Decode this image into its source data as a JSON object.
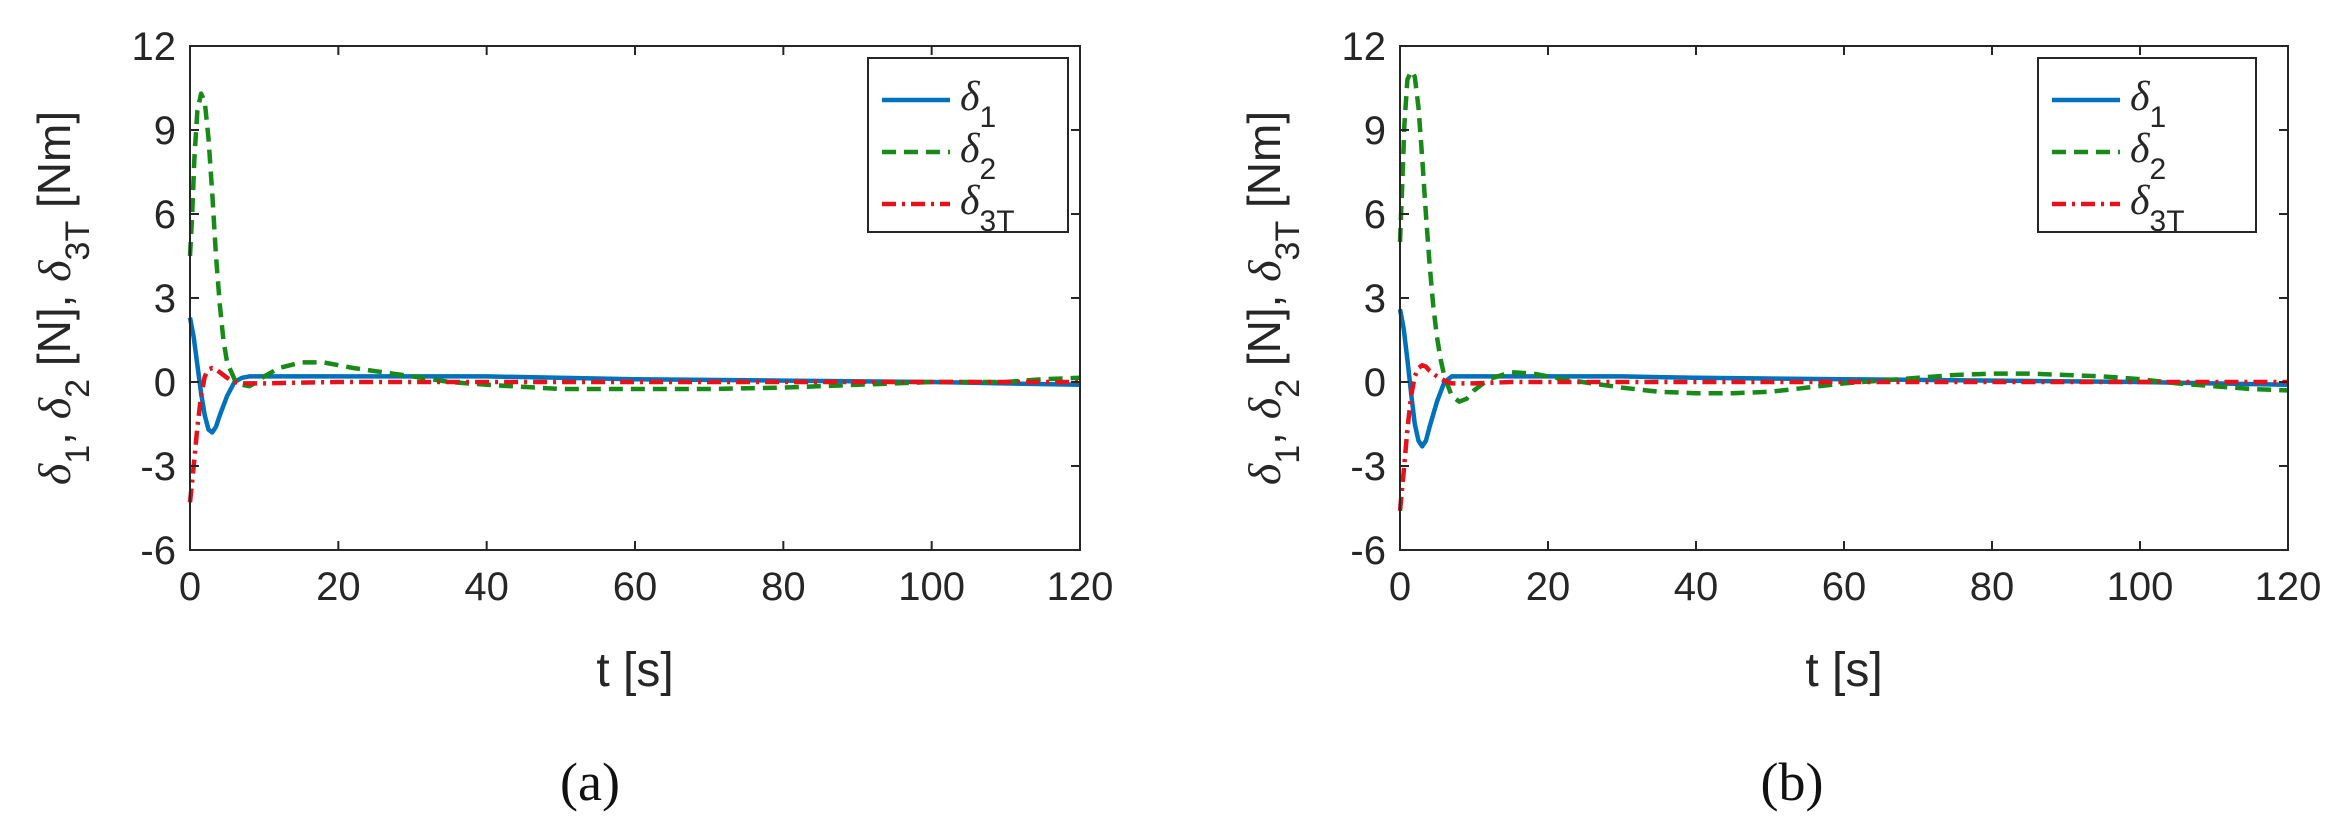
{
  "chart_data": [
    {
      "type": "line",
      "caption": "(a)",
      "xlabel": "t [s]",
      "ylabel": {
        "d1": "δ",
        "s1": "1",
        "d2": "δ",
        "s2": "2",
        "d3": "δ",
        "s3": "3T",
        "u1": " [N], ",
        "u2": " [N], ",
        "u3": " [Nm]",
        "c1": ", "
      },
      "xlim": [
        0,
        120
      ],
      "ylim": [
        -6,
        12
      ],
      "xticks": [
        0,
        20,
        40,
        60,
        80,
        100,
        120
      ],
      "yticks": [
        -6,
        -3,
        0,
        3,
        6,
        9,
        12
      ],
      "xtick_labels": [
        "0",
        "20",
        "40",
        "60",
        "80",
        "100",
        "120"
      ],
      "ytick_labels": [
        "-6",
        "-3",
        "0",
        "3",
        "6",
        "9",
        "12"
      ],
      "legend": {
        "position": "top-right",
        "entries": [
          {
            "symbol": "δ",
            "sub": "1"
          },
          {
            "symbol": "δ",
            "sub": "2"
          },
          {
            "symbol": "δ",
            "sub": "3T"
          }
        ]
      },
      "series": [
        {
          "name": "δ1",
          "color": "#0072BD",
          "style": "solid",
          "x": [
            0,
            0.5,
            1,
            1.5,
            2,
            2.5,
            3,
            3.5,
            4,
            5,
            6,
            7,
            8,
            10,
            12,
            15,
            20,
            30,
            40,
            60,
            80,
            100,
            120
          ],
          "y": [
            2.3,
            1.6,
            0.6,
            -0.4,
            -1.2,
            -1.7,
            -1.8,
            -1.6,
            -1.2,
            -0.5,
            0.0,
            0.15,
            0.2,
            0.2,
            0.2,
            0.2,
            0.2,
            0.2,
            0.2,
            0.1,
            0.05,
            0.0,
            -0.1
          ]
        },
        {
          "name": "δ2",
          "color": "#178A17",
          "style": "dashed",
          "x": [
            0,
            0.3,
            0.6,
            1,
            1.5,
            2,
            2.5,
            3,
            3.5,
            4,
            4.5,
            5,
            6,
            7,
            8,
            9,
            10,
            12,
            15,
            18,
            22,
            26,
            30,
            35,
            40,
            50,
            60,
            70,
            80,
            90,
            100,
            110,
            115,
            120
          ],
          "y": [
            4.5,
            6.0,
            8.0,
            9.7,
            10.3,
            10.0,
            8.7,
            6.7,
            4.5,
            2.8,
            1.5,
            0.7,
            0.1,
            -0.1,
            -0.15,
            0.0,
            0.2,
            0.5,
            0.7,
            0.7,
            0.5,
            0.35,
            0.2,
            0.0,
            -0.1,
            -0.25,
            -0.25,
            -0.25,
            -0.2,
            -0.1,
            0.0,
            0.0,
            0.1,
            0.15
          ]
        },
        {
          "name": "δ3T",
          "color": "#E8101A",
          "style": "dashdot",
          "x": [
            0,
            0.5,
            1,
            1.5,
            2,
            2.5,
            3,
            3.5,
            4,
            5,
            6,
            7,
            8,
            10,
            15,
            20,
            40,
            60,
            80,
            100,
            120
          ],
          "y": [
            -4.3,
            -3.0,
            -1.6,
            -0.5,
            0.2,
            0.45,
            0.5,
            0.45,
            0.35,
            0.15,
            0.0,
            -0.05,
            -0.05,
            -0.05,
            -0.02,
            0.0,
            0.0,
            0.0,
            0.0,
            0.0,
            0.0
          ]
        }
      ]
    },
    {
      "type": "line",
      "caption": "(b)",
      "xlabel": "t [s]",
      "ylabel": {
        "d1": "δ",
        "s1": "1",
        "d2": "δ",
        "s2": "2",
        "d3": "δ",
        "s3": "3T",
        "u1": " [N], ",
        "u2": " [N], ",
        "u3": " [Nm]",
        "c1": ", "
      },
      "xlim": [
        0,
        120
      ],
      "ylim": [
        -6,
        12
      ],
      "xticks": [
        0,
        20,
        40,
        60,
        80,
        100,
        120
      ],
      "yticks": [
        -6,
        -3,
        0,
        3,
        6,
        9,
        12
      ],
      "xtick_labels": [
        "0",
        "20",
        "40",
        "60",
        "80",
        "100",
        "120"
      ],
      "ytick_labels": [
        "-6",
        "-3",
        "0",
        "3",
        "6",
        "9",
        "12"
      ],
      "legend": {
        "position": "top-right",
        "entries": [
          {
            "symbol": "δ",
            "sub": "1"
          },
          {
            "symbol": "δ",
            "sub": "2"
          },
          {
            "symbol": "δ",
            "sub": "3T"
          }
        ]
      },
      "series": [
        {
          "name": "δ1",
          "color": "#0072BD",
          "style": "solid",
          "x": [
            0,
            0.5,
            1,
            1.5,
            2,
            2.5,
            3,
            3.5,
            4,
            5,
            6,
            7,
            8,
            10,
            12,
            15,
            20,
            30,
            40,
            60,
            80,
            100,
            120
          ],
          "y": [
            2.6,
            1.9,
            0.8,
            -0.4,
            -1.5,
            -2.1,
            -2.3,
            -2.1,
            -1.6,
            -0.7,
            0.0,
            0.2,
            0.2,
            0.2,
            0.2,
            0.2,
            0.2,
            0.2,
            0.15,
            0.1,
            0.05,
            0.0,
            -0.1
          ]
        },
        {
          "name": "δ2",
          "color": "#178A17",
          "style": "dashed",
          "x": [
            0,
            0.3,
            0.6,
            1,
            1.5,
            2,
            2.5,
            3,
            3.5,
            4,
            4.5,
            5,
            5.5,
            6,
            7,
            8,
            9,
            10,
            12,
            15,
            18,
            22,
            26,
            30,
            35,
            40,
            45,
            50,
            55,
            60,
            65,
            70,
            75,
            80,
            85,
            90,
            95,
            100,
            105,
            110,
            115,
            120
          ],
          "y": [
            5.0,
            7.0,
            9.2,
            10.8,
            11.1,
            10.9,
            9.8,
            8.0,
            6.0,
            4.2,
            2.7,
            1.6,
            0.8,
            0.2,
            -0.5,
            -0.7,
            -0.6,
            -0.3,
            0.1,
            0.35,
            0.3,
            0.1,
            -0.05,
            -0.2,
            -0.35,
            -0.4,
            -0.4,
            -0.35,
            -0.2,
            -0.05,
            0.05,
            0.15,
            0.25,
            0.3,
            0.3,
            0.25,
            0.2,
            0.1,
            -0.05,
            -0.15,
            -0.25,
            -0.3
          ]
        },
        {
          "name": "δ3T",
          "color": "#E8101A",
          "style": "dashdot",
          "x": [
            0,
            0.5,
            1,
            1.5,
            2,
            2.5,
            3,
            3.5,
            4,
            5,
            6,
            7,
            8,
            10,
            15,
            20,
            40,
            60,
            80,
            100,
            120
          ],
          "y": [
            -4.6,
            -3.2,
            -1.7,
            -0.5,
            0.2,
            0.5,
            0.6,
            0.55,
            0.4,
            0.2,
            0.05,
            -0.05,
            -0.05,
            -0.05,
            0.0,
            0.0,
            0.0,
            0.0,
            0.0,
            0.0,
            0.0
          ]
        }
      ]
    }
  ]
}
